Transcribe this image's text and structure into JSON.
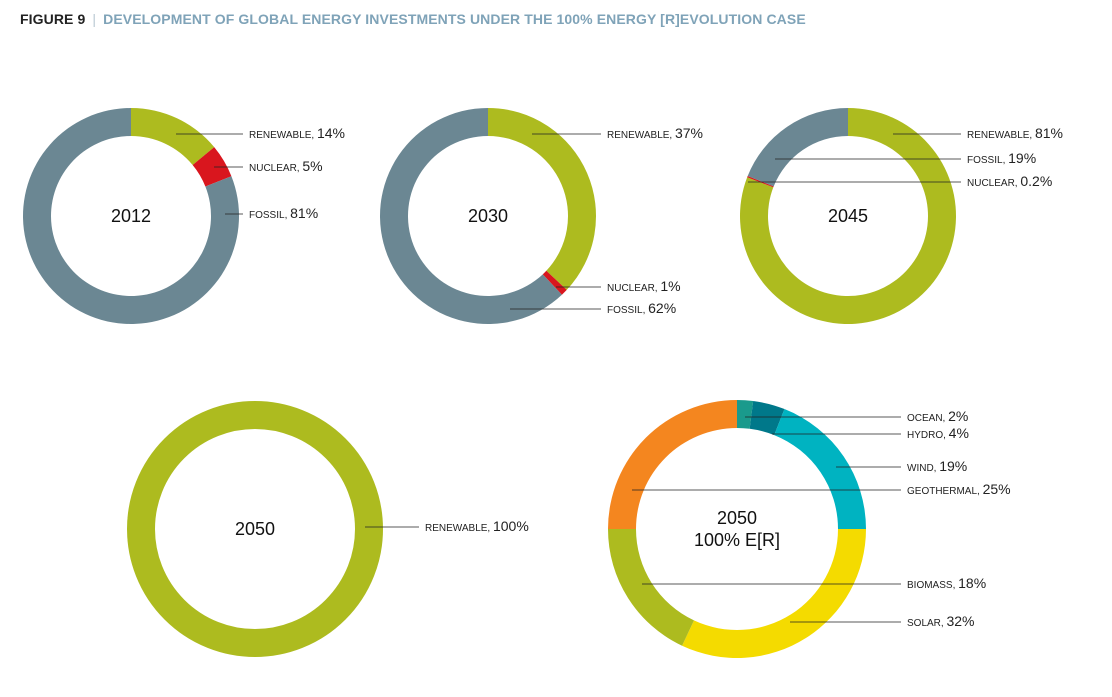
{
  "header": {
    "figure": "FIGURE 9",
    "separator": "|",
    "title": "DEVELOPMENT OF GLOBAL ENERGY INVESTMENTS UNDER THE 100% ENERGY [R]EVOLUTION CASE"
  },
  "chart_data": [
    {
      "type": "pie",
      "style": "donut",
      "center_label": [
        "2012"
      ],
      "slices": [
        {
          "label": "RENEWABLE",
          "display": "14%",
          "value": 14,
          "color": "#adbb1f"
        },
        {
          "label": "NUCLEAR",
          "display": "5%",
          "value": 5,
          "color": "#d9161e"
        },
        {
          "label": "FOSSIL",
          "display": "81%",
          "value": 81,
          "color": "#6b8793"
        }
      ]
    },
    {
      "type": "pie",
      "style": "donut",
      "center_label": [
        "2030"
      ],
      "slices": [
        {
          "label": "RENEWABLE",
          "display": "37%",
          "value": 37,
          "color": "#adbb1f"
        },
        {
          "label": "NUCLEAR",
          "display": "1%",
          "value": 1,
          "color": "#d9161e"
        },
        {
          "label": "FOSSIL",
          "display": "62%",
          "value": 62,
          "color": "#6b8793"
        }
      ]
    },
    {
      "type": "pie",
      "style": "donut",
      "center_label": [
        "2045"
      ],
      "slices": [
        {
          "label": "RENEWABLE",
          "display": "81%",
          "value": 81,
          "color": "#adbb1f"
        },
        {
          "label": "NUCLEAR",
          "display": "0.2%",
          "value": 0.2,
          "color": "#d9161e"
        },
        {
          "label": "FOSSIL",
          "display": "19%",
          "value": 19,
          "color": "#6b8793"
        }
      ]
    },
    {
      "type": "pie",
      "style": "donut",
      "center_label": [
        "2050"
      ],
      "slices": [
        {
          "label": "RENEWABLE",
          "display": "100%",
          "value": 100,
          "color": "#adbb1f"
        }
      ]
    },
    {
      "type": "pie",
      "style": "donut",
      "center_label": [
        "2050",
        "100% E[R]"
      ],
      "slices": [
        {
          "label": "OCEAN",
          "display": "2%",
          "value": 2,
          "color": "#1a9a8c"
        },
        {
          "label": "HYDRO",
          "display": "4%",
          "value": 4,
          "color": "#00788a"
        },
        {
          "label": "WIND",
          "display": "19%",
          "value": 19,
          "color": "#00b3c1"
        },
        {
          "label": "SOLAR",
          "display": "32%",
          "value": 32,
          "color": "#f4db00"
        },
        {
          "label": "BIOMASS",
          "display": "18%",
          "value": 18,
          "color": "#adbb1f"
        },
        {
          "label": "GEOTHERMAL",
          "display": "25%",
          "value": 25,
          "color": "#f4861f"
        }
      ]
    }
  ]
}
